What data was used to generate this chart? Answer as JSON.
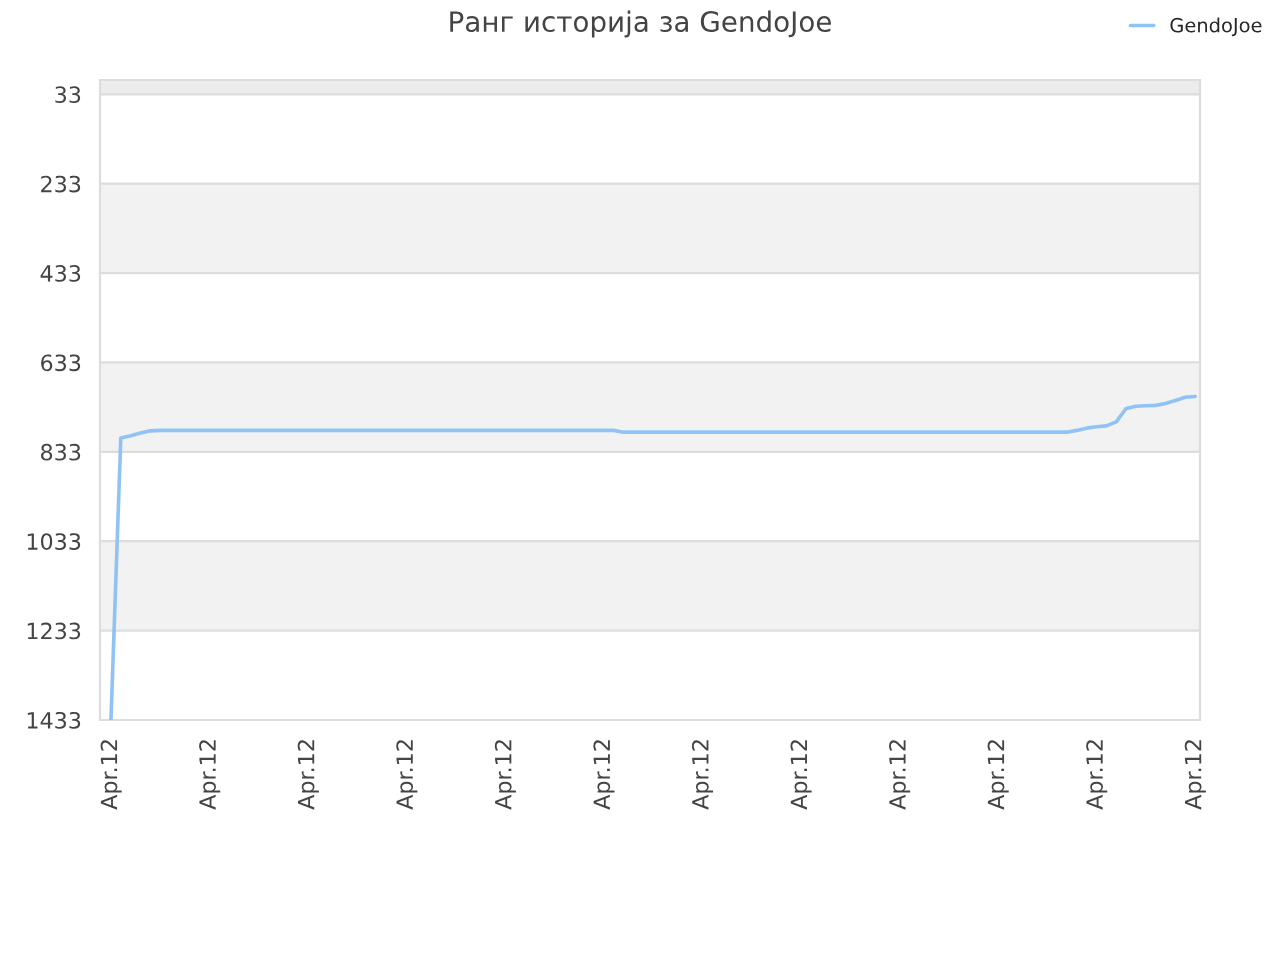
{
  "chart_data": {
    "type": "line",
    "title": "Ранг историја за GendoJoe",
    "categories": [
      "Apr.12",
      null,
      null,
      null,
      null,
      null,
      null,
      null,
      null,
      null,
      "Apr.12",
      null,
      null,
      null,
      null,
      null,
      null,
      null,
      null,
      null,
      "Apr.12",
      null,
      null,
      null,
      null,
      null,
      null,
      null,
      null,
      null,
      "Apr.12",
      null,
      null,
      null,
      null,
      null,
      null,
      null,
      null,
      null,
      "Apr.12",
      null,
      null,
      null,
      null,
      null,
      null,
      null,
      null,
      null,
      "Apr.12",
      null,
      null,
      null,
      null,
      null,
      null,
      null,
      null,
      null,
      "Apr.12",
      null,
      null,
      null,
      null,
      null,
      null,
      null,
      null,
      null,
      "Apr.12",
      null,
      null,
      null,
      null,
      null,
      null,
      null,
      null,
      null,
      "Apr.12",
      null,
      null,
      null,
      null,
      null,
      null,
      null,
      null,
      null,
      "Apr.12",
      null,
      null,
      null,
      null,
      null,
      null,
      null,
      null,
      null,
      "Apr.12",
      null,
      null,
      null,
      null,
      null,
      null,
      null,
      null,
      null,
      "Apr.12"
    ],
    "series": [
      {
        "name": "GendoJoe",
        "color": "#90c3f5",
        "values": [
          1433,
          802,
          797,
          791,
          786,
          785,
          785,
          785,
          785,
          785,
          785,
          785,
          785,
          785,
          785,
          785,
          785,
          785,
          785,
          785,
          785,
          785,
          785,
          785,
          785,
          785,
          785,
          785,
          785,
          785,
          785,
          785,
          785,
          785,
          785,
          785,
          785,
          785,
          785,
          785,
          785,
          785,
          785,
          785,
          785,
          785,
          785,
          785,
          785,
          785,
          785,
          785,
          789,
          789,
          789,
          789,
          789,
          789,
          789,
          789,
          789,
          789,
          789,
          789,
          789,
          789,
          789,
          789,
          789,
          789,
          789,
          789,
          789,
          789,
          789,
          789,
          789,
          789,
          789,
          789,
          789,
          789,
          789,
          789,
          789,
          789,
          789,
          789,
          789,
          789,
          789,
          789,
          789,
          789,
          789,
          789,
          789,
          789,
          785,
          780,
          777,
          775,
          766,
          736,
          731,
          730,
          729,
          725,
          718,
          711,
          709
        ]
      }
    ],
    "ylim": [
      1433,
      1
    ],
    "yticks": [
      33,
      233,
      433,
      633,
      833,
      1033,
      1233,
      1433
    ],
    "bands": [
      {
        "axis": "y",
        "from": 1,
        "to": 33,
        "color": "#ececec"
      },
      {
        "axis": "y",
        "from": 233,
        "to": 433,
        "color": "#f2f2f2"
      },
      {
        "axis": "y",
        "from": 633,
        "to": 833,
        "color": "#f2f2f2"
      },
      {
        "axis": "y",
        "from": 1033,
        "to": 1233,
        "color": "#f2f2f2"
      }
    ],
    "grid": "y",
    "legend": "top right",
    "marker": "none",
    "line_style": "solid"
  }
}
